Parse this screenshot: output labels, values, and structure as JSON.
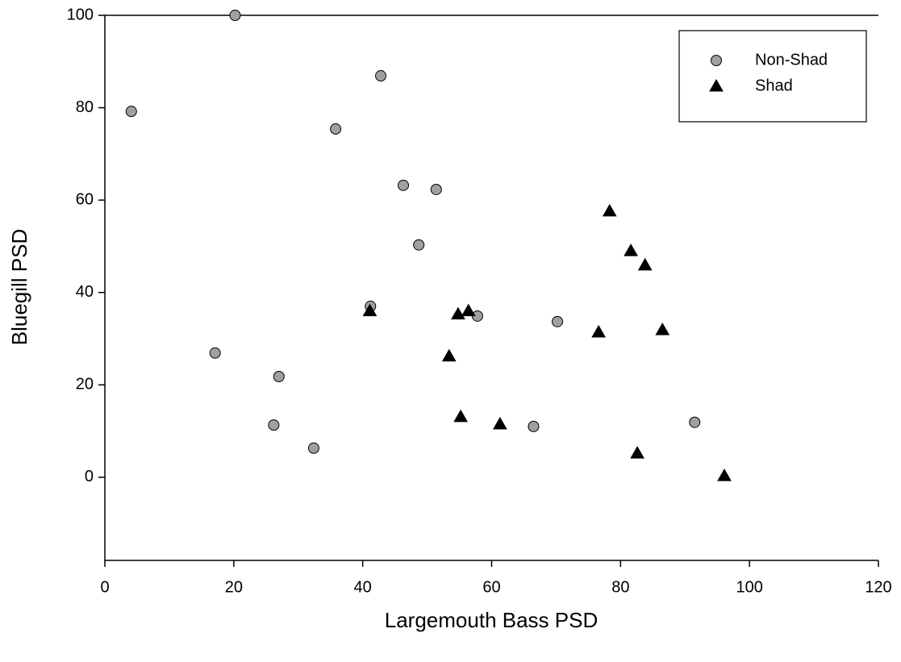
{
  "chart_data": {
    "type": "scatter",
    "x_label": "Largemouth Bass PSD",
    "y_label": "Bluegill PSD",
    "xlim": [
      0,
      120
    ],
    "xticks": [
      0,
      20,
      40,
      60,
      80,
      100,
      120
    ],
    "ylim": [
      -18,
      100
    ],
    "yticks": [
      0,
      20,
      40,
      60,
      80,
      100
    ],
    "grid": false,
    "legend": "top-right",
    "series": [
      {
        "name": "Non-Shad",
        "color": "#a0a0a0",
        "marker": "circle",
        "x": [
          4.1,
          20.2,
          42.8,
          35.8,
          46.3,
          51.4,
          48.7,
          41.2,
          57.8,
          70.2,
          17.1,
          27.0,
          26.2,
          32.4,
          66.5,
          91.5
        ],
        "values": [
          79.2,
          100,
          86.9,
          75.4,
          63.2,
          62.3,
          50.3,
          37.0,
          34.9,
          33.7,
          26.9,
          21.8,
          11.3,
          6.3,
          11.0,
          11.9
        ]
      },
      {
        "name": "Shad",
        "color": "#000000",
        "marker": "triangle",
        "x": [
          41.1,
          54.8,
          56.4,
          53.4,
          55.2,
          61.3,
          78.3,
          81.6,
          83.8,
          76.6,
          86.5,
          82.6,
          96.1
        ],
        "values": [
          36.0,
          35.3,
          36.0,
          26.2,
          13.1,
          11.5,
          57.6,
          49.0,
          45.9,
          31.4,
          31.9,
          5.2,
          0.3
        ]
      }
    ]
  }
}
